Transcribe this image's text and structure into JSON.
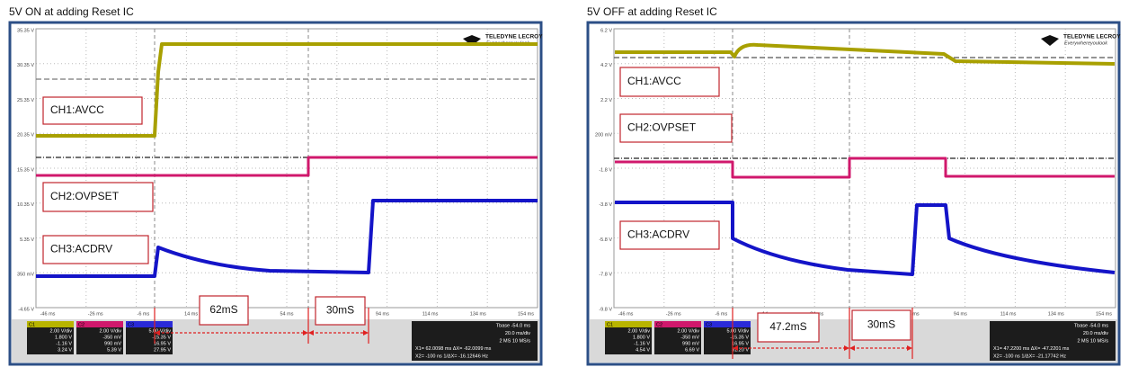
{
  "panels": [
    {
      "title": "5V ON at adding Reset IC",
      "logo": "TELEDYNE LECROY",
      "tagline": "Everywhereyoulook",
      "yticks": [
        "35.35 V",
        "30.35 V",
        "25.35 V",
        "20.35 V",
        "15.35 V",
        "10.35 V",
        "5.35 V",
        "350 mV",
        "-4.65 V"
      ],
      "xticks": [
        "-46 ms",
        "-26 ms",
        "-6 ms",
        "14 ms",
        "34 ms",
        "54 ms",
        "74 ms",
        "94 ms",
        "114 ms",
        "134 ms",
        "154 ms"
      ],
      "labels": [
        "CH1:AVCC",
        "CH2:OVPSET",
        "CH3:ACDRV"
      ],
      "intervals": [
        "62mS",
        "30mS"
      ],
      "channels": [
        {
          "name": "C1",
          "lines": [
            "2.00 V/div",
            "1.800 V",
            "-1.16 V",
            "3.24 V"
          ]
        },
        {
          "name": "C2",
          "lines": [
            "2.00 V/div",
            "-350 mV",
            "990 mV",
            "5.39 V"
          ]
        },
        {
          "name": "C3",
          "lines": [
            "5.00 V/div",
            "-15.35 V",
            "16.95 V",
            "27.95 V"
          ]
        }
      ],
      "timebase": [
        "Tbase -54.0 ms",
        "20.0 ms/div",
        "2 MS 10 MS/s",
        "X1= 62.0098 ms  ΔX= -62.0099 ms",
        "X2= -100 ns  1/ΔX= -16.12646 Hz"
      ]
    },
    {
      "title": "5V OFF at adding Reset IC",
      "logo": "TELEDYNE LECROY",
      "tagline": "Everywhereyoulook",
      "yticks": [
        "6.2 V",
        "4.2 V",
        "2.2 V",
        "200 mV",
        "-1.8 V",
        "-3.8 V",
        "-5.8 V",
        "-7.8 V",
        "-9.8 V"
      ],
      "xticks": [
        "-46 ms",
        "-26 ms",
        "-6 ms",
        "14 ms",
        "34 ms",
        "54 ms",
        "74 ms",
        "94 ms",
        "114 ms",
        "134 ms",
        "154 ms"
      ],
      "labels": [
        "CH1:AVCC",
        "CH2:OVPSET",
        "CH3:ACDRV"
      ],
      "intervals": [
        "47.2mS",
        "30mS"
      ],
      "channels": [
        {
          "name": "C1",
          "lines": [
            "2.00 V/div",
            "1.800 V",
            "-1.16 V",
            "4.54 V"
          ]
        },
        {
          "name": "C2",
          "lines": [
            "2.00 V/div",
            "-350 mV",
            "990 mV",
            "6.69 V"
          ]
        },
        {
          "name": "C3",
          "lines": [
            "5.00 V/div",
            "-15.35 V",
            "16.95 V",
            "31.20 V"
          ]
        }
      ],
      "timebase": [
        "Tbase -54.0 ms",
        "20.0 ms/div",
        "2 MS 10 MS/s",
        "X1= 47.2200 ms  ΔX= -47.2201 ms",
        "X2= -100 ns  1/ΔX= -21.17742 Hz"
      ]
    }
  ]
}
